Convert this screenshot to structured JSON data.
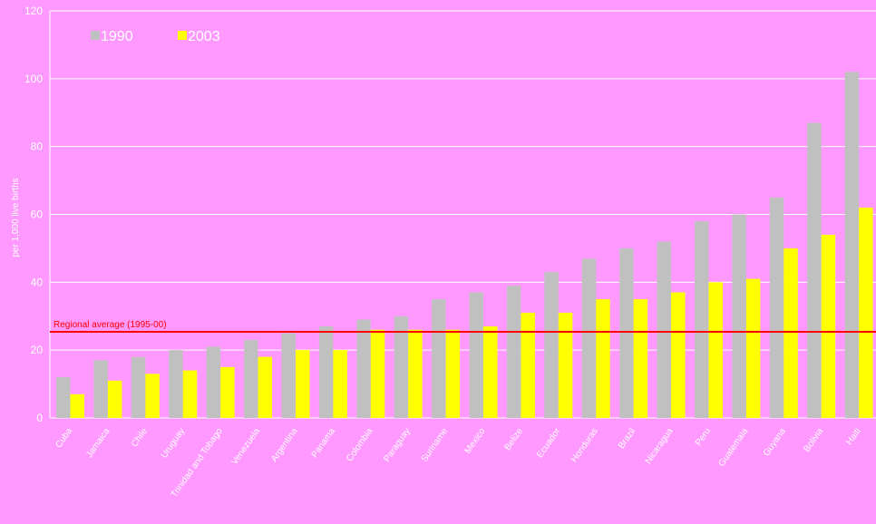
{
  "chart_data": {
    "type": "bar",
    "y_label": "per 1,000 live births",
    "categories": [
      "Cuba",
      "Jamaica",
      "Chile",
      "Uruguay",
      "Trinidad and Tobago",
      "Venezuela",
      "Argentina",
      "Panama",
      "Colombia",
      "Paraguay",
      "Suriname",
      "Mexico",
      "Belize",
      "Ecuador",
      "Honduras",
      "Brazil",
      "Nicaragua",
      "Peru",
      "Guatemala",
      "Guyana",
      "Bolivia",
      "Haiti"
    ],
    "series": [
      {
        "name": "1990",
        "color": "#c0c0c0",
        "values": [
          12,
          17,
          18,
          20,
          21,
          23,
          25,
          27,
          29,
          30,
          35,
          37,
          39,
          43,
          47,
          50,
          52,
          58,
          60,
          65,
          87,
          102
        ]
      },
      {
        "name": "2003",
        "color": "#ffff00",
        "values": [
          7,
          11,
          13,
          14,
          15,
          18,
          20,
          20,
          26,
          26,
          26,
          27,
          31,
          31,
          35,
          35,
          37,
          40,
          41,
          50,
          54,
          62
        ]
      }
    ],
    "reference_line": {
      "value": 25.4,
      "label": "Regional average (1995-00)",
      "color": "#ff0000"
    },
    "ylim": [
      0,
      120
    ],
    "yticks": [
      0,
      20,
      40,
      60,
      80,
      100,
      120
    ],
    "grid": true
  }
}
